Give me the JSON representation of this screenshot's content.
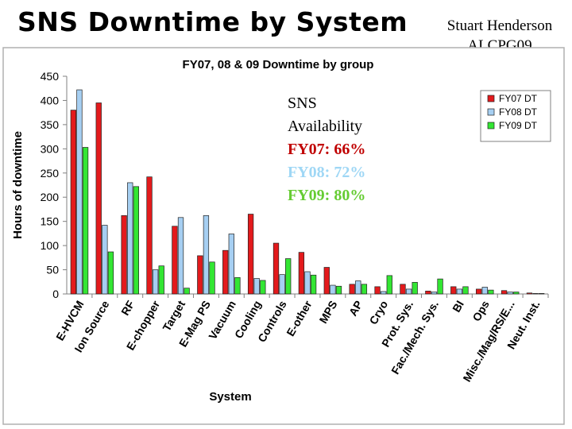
{
  "slide": {
    "title": "SNS Downtime by System",
    "author_line1": "Stuart Henderson",
    "author_line2": "ALCPG09"
  },
  "availability": {
    "heading1": "SNS",
    "heading2": "Availability",
    "fy07": "FY07: 66%",
    "fy08": "FY08: 72%",
    "fy09": "FY09: 80%"
  },
  "colors": {
    "fy07": "#e31a1c",
    "fy08": "#a6cff2",
    "fy09": "#33e633"
  },
  "chart_data": {
    "type": "bar",
    "title": "FY07, 08 & 09 Downtime by group",
    "xlabel": "System",
    "ylabel": "Hours of downtime",
    "ylim": [
      0,
      450
    ],
    "yticks": [
      0,
      50,
      100,
      150,
      200,
      250,
      300,
      350,
      400,
      450
    ],
    "grid": false,
    "legend": "top-right",
    "categories": [
      "E-HVCM",
      "Ion Source",
      "RF",
      "E-chopper",
      "Target",
      "E-Mag PS",
      "Vacuum",
      "Cooling",
      "Controls",
      "E-other",
      "MPS",
      "AP",
      "Cryo",
      "Prot. Sys.",
      "Fac./Mech. Sys.",
      "BI",
      "Ops",
      "Misc./Mag/RS/E...",
      "Neut. Inst."
    ],
    "series": [
      {
        "name": "FY07 DT",
        "values": [
          380,
          395,
          162,
          242,
          140,
          79,
          90,
          165,
          105,
          86,
          55,
          20,
          15,
          20,
          6,
          15,
          10,
          7,
          2
        ]
      },
      {
        "name": "FY08 DT",
        "values": [
          422,
          142,
          230,
          50,
          158,
          162,
          124,
          32,
          40,
          46,
          18,
          27,
          5,
          10,
          4,
          10,
          14,
          4,
          1
        ]
      },
      {
        "name": "FY09 DT",
        "values": [
          303,
          87,
          222,
          58,
          12,
          66,
          34,
          28,
          73,
          39,
          16,
          20,
          38,
          24,
          31,
          15,
          8,
          4,
          1
        ]
      }
    ]
  }
}
